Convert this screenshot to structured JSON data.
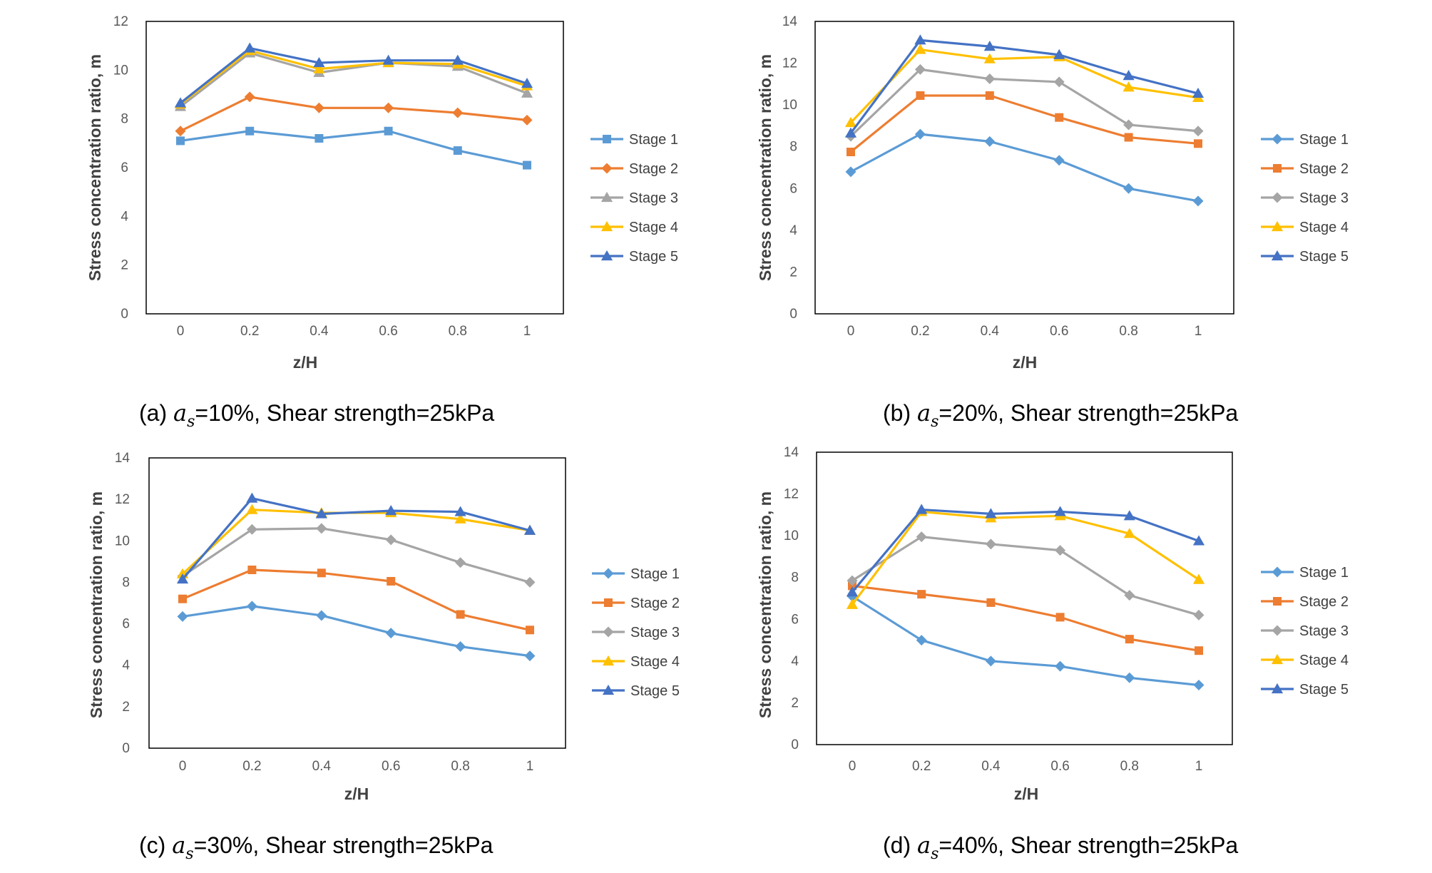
{
  "chart_data": [
    {
      "type": "line",
      "panel": "a",
      "caption": {
        "prefix": "(a) ",
        "var": "a",
        "sub": "s",
        "rest": "=10%, Shear strength=25kPa"
      },
      "xlabel": "z/H",
      "ylabel": "Stress concentration ratio, m",
      "x": [
        0,
        0.2,
        0.4,
        0.6,
        0.8,
        1
      ],
      "x_ticks": [
        "0",
        "0.2",
        "0.4",
        "0.6",
        "0.8",
        "1"
      ],
      "ylim": [
        0,
        12
      ],
      "y_ticks": [
        "0",
        "2",
        "4",
        "6",
        "8",
        "10",
        "12"
      ],
      "grid": false,
      "legend_position": "right",
      "series": [
        {
          "name": "Stage 1",
          "values": [
            7.1,
            7.5,
            7.2,
            7.5,
            6.7,
            6.1
          ],
          "color": "#5B9BD5",
          "marker": "square"
        },
        {
          "name": "Stage 2",
          "values": [
            7.5,
            8.9,
            8.45,
            8.45,
            8.25,
            7.95
          ],
          "color": "#ED7D31",
          "marker": "diamond"
        },
        {
          "name": "Stage 3",
          "values": [
            8.5,
            10.7,
            9.9,
            10.3,
            10.15,
            9.05
          ],
          "color": "#A5A5A5",
          "marker": "triangle"
        },
        {
          "name": "Stage 4",
          "values": [
            8.6,
            10.8,
            10.05,
            10.3,
            10.25,
            9.35
          ],
          "color": "#FFC000",
          "marker": "triangle"
        },
        {
          "name": "Stage 5",
          "values": [
            8.65,
            10.9,
            10.3,
            10.4,
            10.4,
            9.45
          ],
          "color": "#4472C4",
          "marker": "triangle"
        }
      ]
    },
    {
      "type": "line",
      "panel": "b",
      "caption": {
        "prefix": "(b) ",
        "var": "a",
        "sub": "s",
        "rest": "=20%, Shear strength=25kPa"
      },
      "xlabel": "z/H",
      "ylabel": "Stress concentration ratio, m",
      "x": [
        0,
        0.2,
        0.4,
        0.6,
        0.8,
        1
      ],
      "x_ticks": [
        "0",
        "0.2",
        "0.4",
        "0.6",
        "0.8",
        "1"
      ],
      "ylim": [
        0,
        14
      ],
      "y_ticks": [
        "0",
        "2",
        "4",
        "6",
        "8",
        "10",
        "12",
        "14"
      ],
      "grid": false,
      "legend_position": "right",
      "series": [
        {
          "name": "Stage 1",
          "values": [
            6.8,
            8.6,
            8.25,
            7.35,
            6.0,
            5.4
          ],
          "color": "#5B9BD5",
          "marker": "diamond"
        },
        {
          "name": "Stage 2",
          "values": [
            7.75,
            10.45,
            10.45,
            9.4,
            8.45,
            8.15
          ],
          "color": "#ED7D31",
          "marker": "square"
        },
        {
          "name": "Stage 3",
          "values": [
            8.5,
            11.7,
            11.25,
            11.1,
            9.05,
            8.75
          ],
          "color": "#A5A5A5",
          "marker": "diamond"
        },
        {
          "name": "Stage 4",
          "values": [
            9.15,
            12.65,
            12.2,
            12.3,
            10.85,
            10.35
          ],
          "color": "#FFC000",
          "marker": "triangle"
        },
        {
          "name": "Stage 5",
          "values": [
            8.65,
            13.1,
            12.8,
            12.4,
            11.4,
            10.55
          ],
          "color": "#4472C4",
          "marker": "triangle"
        }
      ]
    },
    {
      "type": "line",
      "panel": "c",
      "caption": {
        "prefix": "(c) ",
        "var": "a",
        "sub": "s",
        "rest": "=30%, Shear strength=25kPa"
      },
      "xlabel": "z/H",
      "ylabel": "Stress concentration ratio, m",
      "x": [
        0,
        0.2,
        0.4,
        0.6,
        0.8,
        1
      ],
      "x_ticks": [
        "0",
        "0.2",
        "0.4",
        "0.6",
        "0.8",
        "1"
      ],
      "ylim": [
        0,
        14
      ],
      "y_ticks": [
        "0",
        "2",
        "4",
        "6",
        "8",
        "10",
        "12",
        "14"
      ],
      "grid": false,
      "legend_position": "right",
      "series": [
        {
          "name": "Stage 1",
          "values": [
            6.35,
            6.85,
            6.4,
            5.55,
            4.9,
            4.45
          ],
          "color": "#5B9BD5",
          "marker": "diamond"
        },
        {
          "name": "Stage 2",
          "values": [
            7.2,
            8.6,
            8.45,
            8.05,
            6.45,
            5.7
          ],
          "color": "#ED7D31",
          "marker": "square"
        },
        {
          "name": "Stage 3",
          "values": [
            8.3,
            10.55,
            10.6,
            10.05,
            8.95,
            8.0
          ],
          "color": "#A5A5A5",
          "marker": "diamond"
        },
        {
          "name": "Stage 4",
          "values": [
            8.4,
            11.5,
            11.35,
            11.35,
            11.05,
            10.5
          ],
          "color": "#FFC000",
          "marker": "triangle"
        },
        {
          "name": "Stage 5",
          "values": [
            8.15,
            12.05,
            11.3,
            11.45,
            11.4,
            10.5
          ],
          "color": "#4472C4",
          "marker": "triangle"
        }
      ]
    },
    {
      "type": "line",
      "panel": "d",
      "caption": {
        "prefix": "(d) ",
        "var": "a",
        "sub": "s",
        "rest": "=40%, Shear strength=25kPa"
      },
      "xlabel": "z/H",
      "ylabel": "Stress concentration ratio, m",
      "x": [
        0,
        0.2,
        0.4,
        0.6,
        0.8,
        1
      ],
      "x_ticks": [
        "0",
        "0.2",
        "0.4",
        "0.6",
        "0.8",
        "1"
      ],
      "ylim": [
        0,
        14
      ],
      "y_ticks": [
        "0",
        "2",
        "4",
        "6",
        "8",
        "10",
        "12",
        "14"
      ],
      "grid": false,
      "legend_position": "right",
      "series": [
        {
          "name": "Stage 1",
          "values": [
            7.1,
            5.0,
            4.0,
            3.75,
            3.2,
            2.85
          ],
          "color": "#5B9BD5",
          "marker": "diamond"
        },
        {
          "name": "Stage 2",
          "values": [
            7.6,
            7.2,
            6.8,
            6.1,
            5.05,
            4.5
          ],
          "color": "#ED7D31",
          "marker": "square"
        },
        {
          "name": "Stage 3",
          "values": [
            7.85,
            9.95,
            9.6,
            9.3,
            7.15,
            6.2
          ],
          "color": "#A5A5A5",
          "marker": "diamond"
        },
        {
          "name": "Stage 4",
          "values": [
            6.7,
            11.15,
            10.85,
            10.95,
            10.1,
            7.9
          ],
          "color": "#FFC000",
          "marker": "triangle"
        },
        {
          "name": "Stage 5",
          "values": [
            7.3,
            11.25,
            11.05,
            11.15,
            10.95,
            9.75
          ],
          "color": "#4472C4",
          "marker": "triangle"
        }
      ]
    }
  ]
}
